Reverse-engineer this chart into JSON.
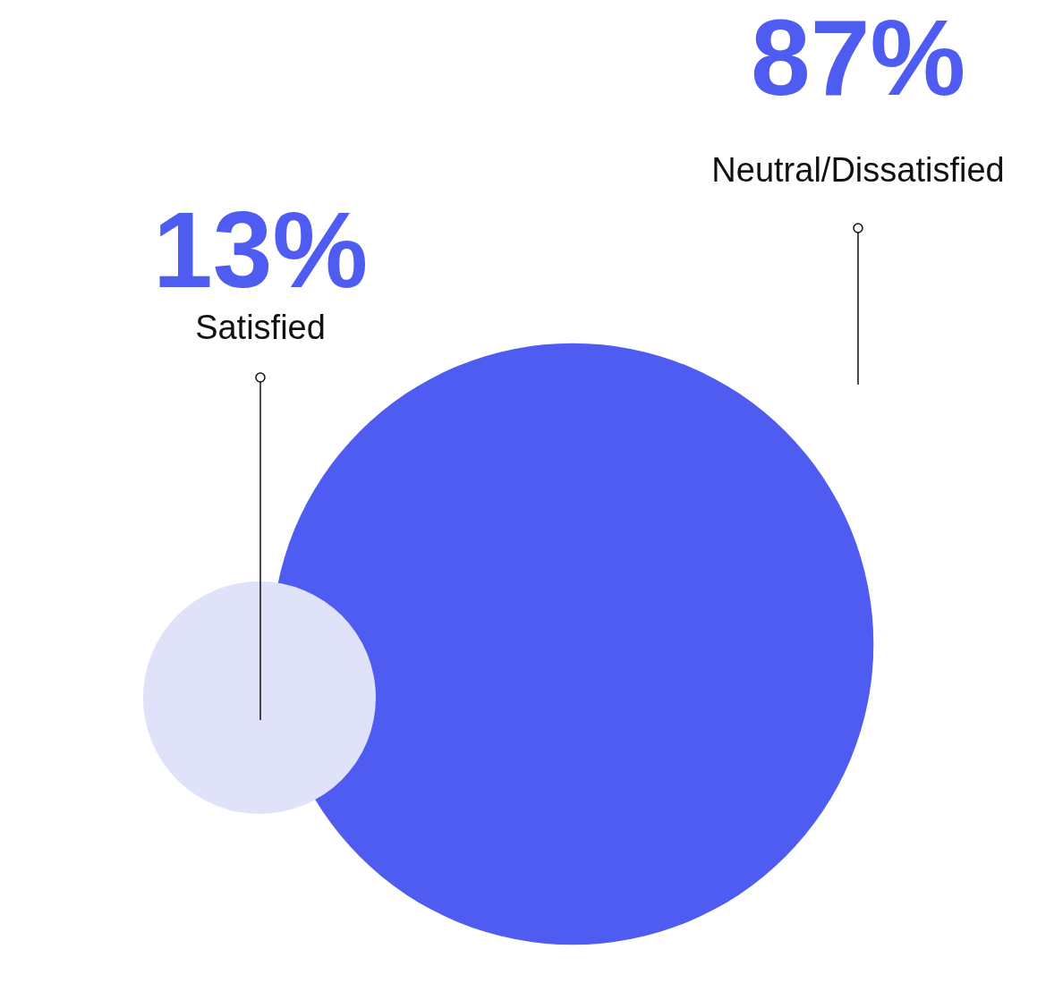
{
  "chart_data": {
    "type": "other",
    "categories": [
      "Satisfied",
      "Neutral/Dissatisfied"
    ],
    "values": [
      13,
      87
    ],
    "value_labels": [
      "13%",
      "87%"
    ],
    "colors": [
      "#e0e2fa",
      "#4f5cf2"
    ]
  }
}
